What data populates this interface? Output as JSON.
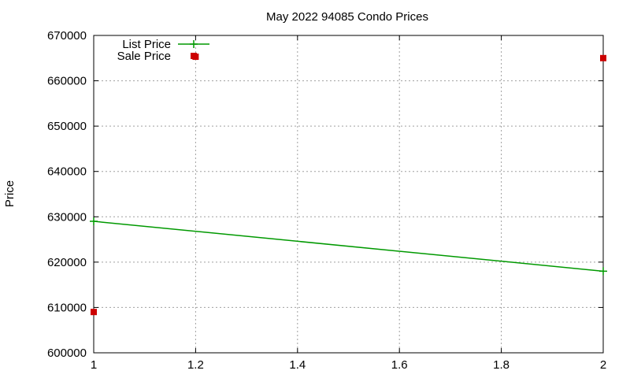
{
  "chart_data": {
    "type": "line",
    "title": "May 2022 94085 Condo Prices",
    "xlabel": "",
    "ylabel": "Price",
    "xlim": [
      1,
      2
    ],
    "ylim": [
      600000,
      670000
    ],
    "xticks": [
      "1",
      "1.2",
      "1.4",
      "1.6",
      "1.8",
      "2"
    ],
    "xtick_values": [
      1,
      1.2,
      1.4,
      1.6,
      1.8,
      2
    ],
    "yticks": [
      "600000",
      "610000",
      "620000",
      "630000",
      "640000",
      "650000",
      "660000",
      "670000"
    ],
    "ytick_values": [
      600000,
      610000,
      620000,
      630000,
      640000,
      650000,
      660000,
      670000
    ],
    "grid": true,
    "legend_position": "top-left",
    "series": [
      {
        "name": "List Price",
        "style": "linespoints",
        "color": "#009900",
        "marker": "plus",
        "x": [
          1,
          2
        ],
        "y": [
          629000,
          618000
        ]
      },
      {
        "name": "Sale Price",
        "style": "points",
        "color": "#cc0000",
        "marker": "square",
        "x": [
          1,
          1.2,
          2
        ],
        "y": [
          609000,
          665300,
          665000
        ]
      }
    ]
  }
}
